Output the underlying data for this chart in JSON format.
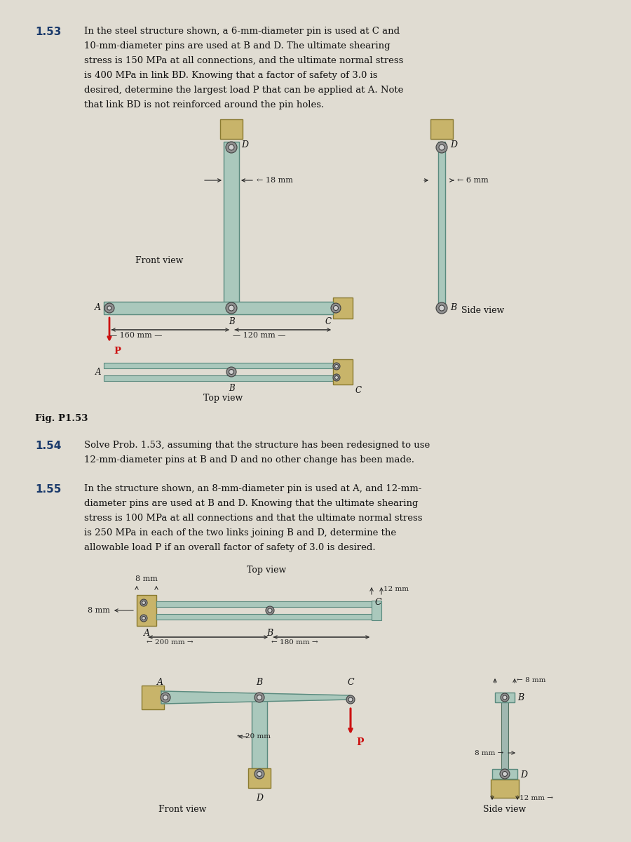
{
  "bg_color": "#e0dcd2",
  "title_color": "#1a3a6b",
  "text_color": "#111111",
  "steel_color": "#aac8bc",
  "steel_edge": "#5a8a7e",
  "wall_color": "#c8b46a",
  "wall_edge": "#8a7a30",
  "pin_outer": "#909090",
  "pin_inner": "#d8d8d8",
  "arrow_color": "#cc1111",
  "dim_color": "#222222",
  "prob153_num": "1.53",
  "prob154_num": "1.54",
  "prob155_num": "1.55"
}
